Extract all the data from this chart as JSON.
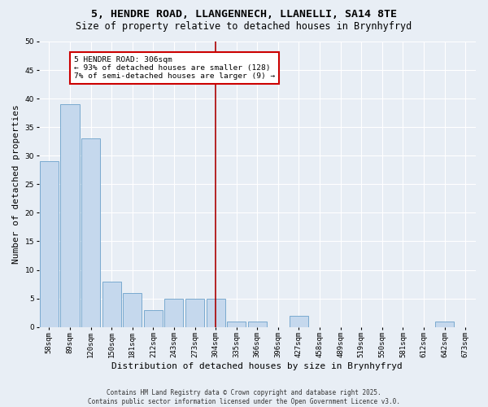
{
  "title1": "5, HENDRE ROAD, LLANGENNECH, LLANELLI, SA14 8TE",
  "title2": "Size of property relative to detached houses in Brynhyfryd",
  "xlabel": "Distribution of detached houses by size in Brynhyfryd",
  "ylabel": "Number of detached properties",
  "categories": [
    "58sqm",
    "89sqm",
    "120sqm",
    "150sqm",
    "181sqm",
    "212sqm",
    "243sqm",
    "273sqm",
    "304sqm",
    "335sqm",
    "366sqm",
    "396sqm",
    "427sqm",
    "458sqm",
    "489sqm",
    "519sqm",
    "550sqm",
    "581sqm",
    "612sqm",
    "642sqm",
    "673sqm"
  ],
  "values": [
    29,
    39,
    33,
    8,
    6,
    3,
    5,
    5,
    5,
    1,
    1,
    0,
    2,
    0,
    0,
    0,
    0,
    0,
    0,
    1,
    0
  ],
  "bar_color": "#c5d8ed",
  "bar_edge_color": "#7aaacf",
  "vline_color": "#aa0000",
  "annotation_text": "5 HENDRE ROAD: 306sqm\n← 93% of detached houses are smaller (128)\n7% of semi-detached houses are larger (9) →",
  "annotation_box_color": "#ffffff",
  "annotation_box_edge": "#cc0000",
  "ylim": [
    0,
    50
  ],
  "yticks": [
    0,
    5,
    10,
    15,
    20,
    25,
    30,
    35,
    40,
    45,
    50
  ],
  "bg_color": "#e8eef5",
  "plot_bg_color": "#e8eef5",
  "footer": "Contains HM Land Registry data © Crown copyright and database right 2025.\nContains public sector information licensed under the Open Government Licence v3.0.",
  "grid_color": "#ffffff",
  "title_fontsize": 9.5,
  "subtitle_fontsize": 8.5,
  "tick_fontsize": 6.5,
  "label_fontsize": 8,
  "annotation_fontsize": 6.8,
  "footer_fontsize": 5.5
}
